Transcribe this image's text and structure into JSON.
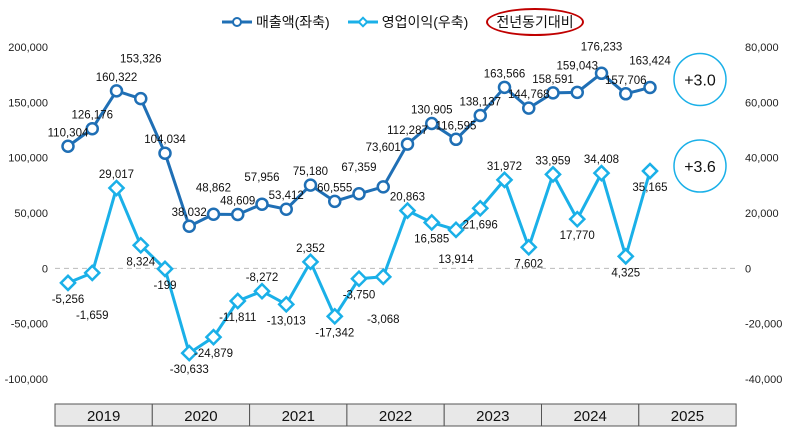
{
  "chart_data": {
    "type": "line",
    "legend": {
      "placement": "top",
      "series": [
        "매출액(좌축)",
        "영업이익(우축)"
      ],
      "yoy_label": "전년동기대비"
    },
    "years": [
      "2019",
      "2020",
      "2021",
      "2022",
      "2023",
      "2024",
      "2025"
    ],
    "quarters_per_year": 4,
    "left_axis": {
      "ylim": [
        -100000,
        200000
      ],
      "ticks": [
        "-100,000",
        "-50,000",
        "0",
        "50,000",
        "100,000",
        "150,000",
        "200,000"
      ],
      "tick_values": [
        -100000,
        -50000,
        0,
        50000,
        100000,
        150000,
        200000
      ]
    },
    "right_axis": {
      "ylim": [
        -40000,
        80000
      ],
      "ticks": [
        "-40,000",
        "-20,000",
        "0",
        "20,000",
        "40,000",
        "60,000",
        "80,000"
      ],
      "tick_values": [
        -40000,
        -20000,
        0,
        20000,
        40000,
        60000,
        80000
      ]
    },
    "series": [
      {
        "name": "매출액(좌축)",
        "axis": "left",
        "color": "#1f6fb5",
        "values": [
          110304,
          126176,
          160322,
          153326,
          104034,
          38032,
          48862,
          48609,
          57956,
          53412,
          75180,
          60555,
          67359,
          73601,
          112287,
          130905,
          116595,
          138137,
          163566,
          144768,
          158591,
          159043,
          176233,
          157706,
          163424
        ]
      },
      {
        "name": "영업이익(우축)",
        "axis": "right",
        "color": "#1ab0e8",
        "values": [
          -5256,
          -1659,
          29017,
          8324,
          -199,
          -30633,
          -24879,
          -11811,
          -8272,
          -13013,
          2352,
          -17342,
          -3750,
          -3068,
          20863,
          16585,
          13914,
          21696,
          31972,
          7602,
          33959,
          17770,
          34408,
          4325,
          35165
        ]
      }
    ],
    "annotations": [
      {
        "series": "매출액(좌축)",
        "text": "+3.0"
      },
      {
        "series": "영업이익(우축)",
        "text": "+3.6"
      }
    ],
    "grid": "zero-line dashed"
  }
}
